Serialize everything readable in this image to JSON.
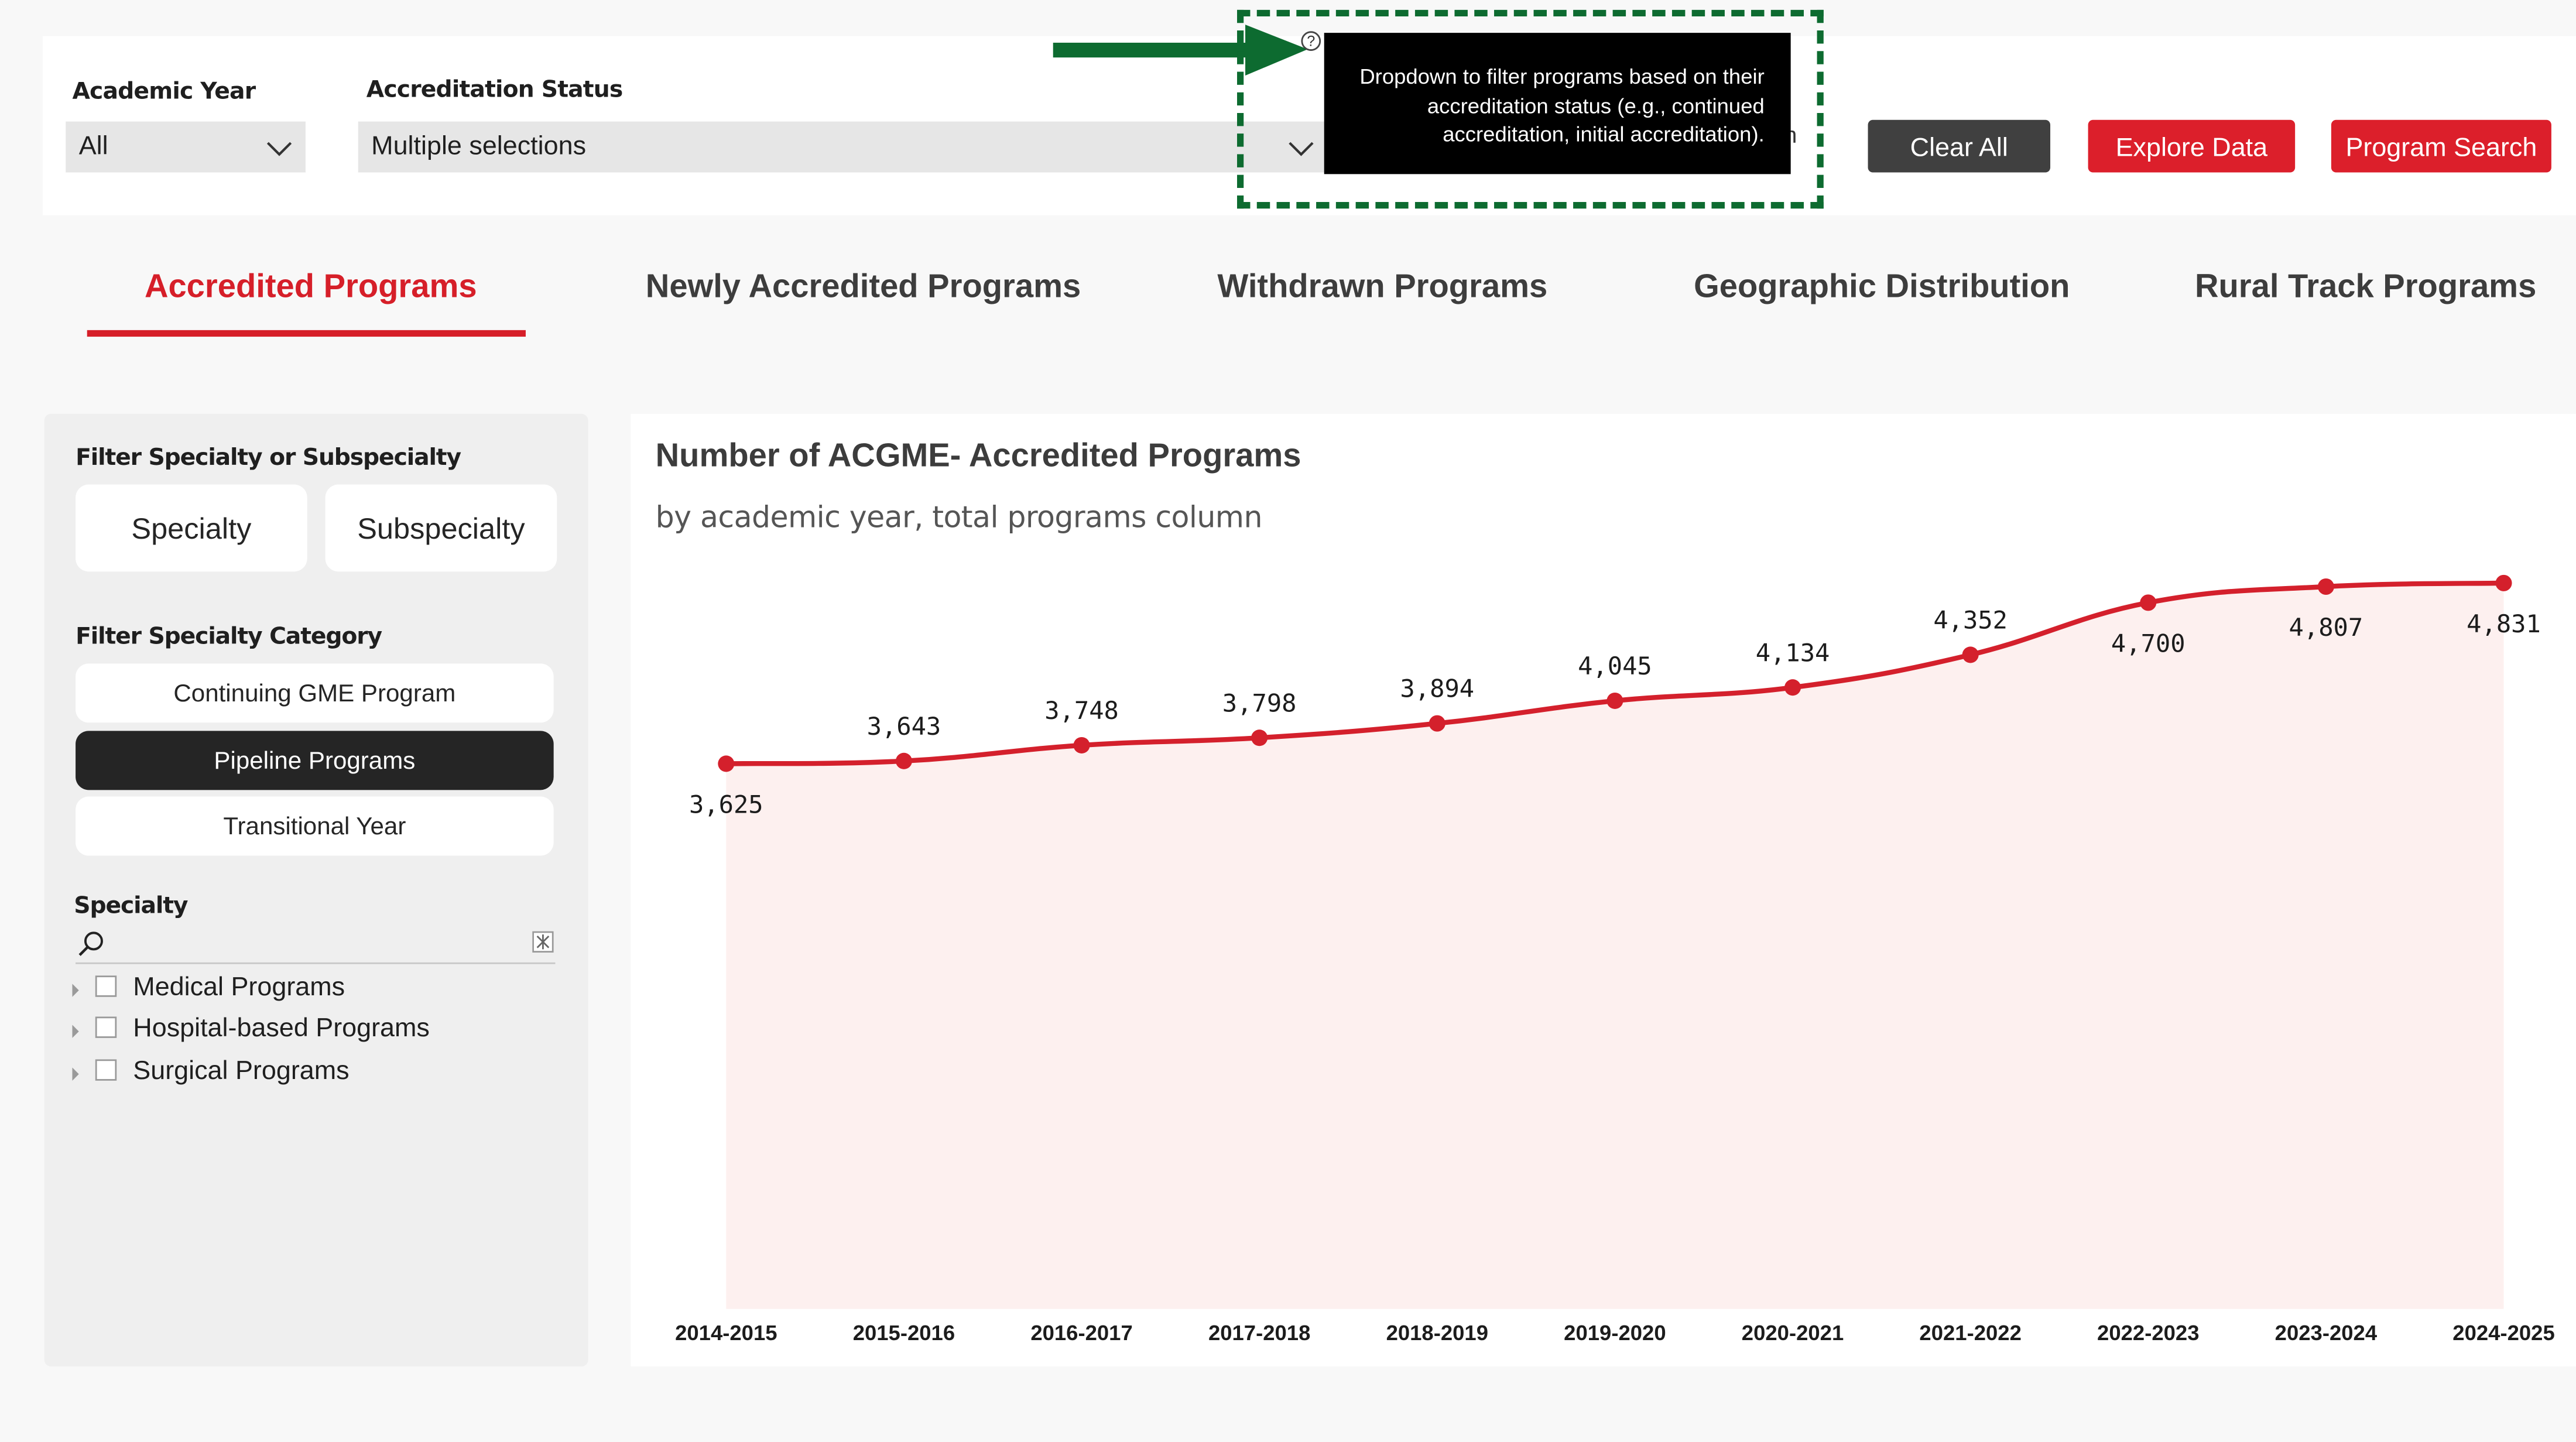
{
  "filters": {
    "academic_year": {
      "label": "Academic Year",
      "value": "All"
    },
    "accreditation_status": {
      "label": "Accreditation Status",
      "value": "Multiple selections"
    }
  },
  "buttons": {
    "clear_all": "Clear All",
    "explore_data": "Explore Data",
    "program_search": "Program Search"
  },
  "tooltip": {
    "text": "Dropdown to filter programs based on their accreditation status (e.g., continued accreditation, initial accreditation).",
    "help_glyph": "?",
    "partial_text": "h"
  },
  "tabs": [
    {
      "label": "Accredited Programs",
      "active": true
    },
    {
      "label": "Newly Accredited Programs",
      "active": false
    },
    {
      "label": "Withdrawn Programs",
      "active": false
    },
    {
      "label": "Geographic Distribution",
      "active": false
    },
    {
      "label": "Rural Track Programs",
      "active": false
    }
  ],
  "left_panel": {
    "specialty_or_sub_label": "Filter Specialty or Subspecialty",
    "specialty_button": "Specialty",
    "subspecialty_button": "Subspecialty",
    "category_label": "Filter Specialty Category",
    "categories": [
      {
        "label": "Continuing GME Program",
        "selected": false
      },
      {
        "label": "Pipeline Programs",
        "selected": true
      },
      {
        "label": "Transitional Year",
        "selected": false
      }
    ],
    "specialty_label": "Specialty",
    "search_placeholder": "",
    "tree": [
      {
        "label": "Medical Programs"
      },
      {
        "label": "Hospital-based Programs"
      },
      {
        "label": "Surgical Programs"
      }
    ]
  },
  "chart_data": {
    "type": "area",
    "title": "Number of ACGME- Accredited Programs",
    "subtitle": "by academic year, total programs column",
    "categories": [
      "2014-2015",
      "2015-2016",
      "2016-2017",
      "2017-2018",
      "2018-2019",
      "2019-2020",
      "2020-2021",
      "2021-2022",
      "2022-2023",
      "2023-2024",
      "2024-2025"
    ],
    "values": [
      3625,
      3643,
      3748,
      3798,
      3894,
      4045,
      4134,
      4352,
      4700,
      4807,
      4831
    ],
    "value_labels": [
      "3,625",
      "3,643",
      "3,748",
      "3,798",
      "3,894",
      "4,045",
      "4,134",
      "4,352",
      "4,700",
      "4,807",
      "4,831"
    ],
    "xlabel": "",
    "ylabel": "",
    "grid": false,
    "colors": {
      "line": "#d4202c",
      "fill": "#fdf0ef"
    }
  },
  "colors": {
    "accent": "#d61f29",
    "annotation": "#0d6b30",
    "dark_button": "#404040"
  }
}
